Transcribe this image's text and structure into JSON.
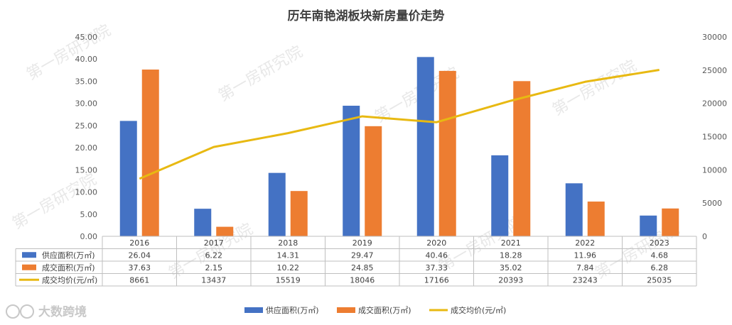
{
  "chart_data": {
    "type": "bar",
    "title": "历年南艳湖板块新房量价走势",
    "categories": [
      "2016",
      "2017",
      "2018",
      "2019",
      "2020",
      "2021",
      "2022",
      "2023"
    ],
    "series": [
      {
        "name": "供应面积(万㎡)",
        "type": "bar",
        "axis": "left",
        "color": "#4472c4",
        "values": [
          26.04,
          6.22,
          14.31,
          29.47,
          40.46,
          18.28,
          11.96,
          4.68
        ]
      },
      {
        "name": "成交面积(万㎡)",
        "type": "bar",
        "axis": "left",
        "color": "#ed7d31",
        "values": [
          37.63,
          2.15,
          10.22,
          24.85,
          37.33,
          35.02,
          7.84,
          6.28
        ]
      },
      {
        "name": "成交均价(元/㎡)",
        "type": "line",
        "axis": "right",
        "color": "#e8b912",
        "values": [
          8661,
          13437,
          15519,
          18046,
          17166,
          20393,
          23243,
          25035
        ]
      }
    ],
    "y_left": {
      "ticks": [
        "0.00",
        "5.00",
        "10.00",
        "15.00",
        "20.00",
        "25.00",
        "30.00",
        "35.00",
        "40.00",
        "45.00"
      ],
      "ylim": [
        0,
        45
      ]
    },
    "y_right": {
      "ticks": [
        "0",
        "5000",
        "10000",
        "15000",
        "20000",
        "25000",
        "30000"
      ],
      "ylim": [
        0,
        30000
      ]
    },
    "data_table": {
      "rows": [
        {
          "label": "供应面积(万㎡)",
          "values": [
            "26.04",
            "6.22",
            "14.31",
            "29.47",
            "40.46",
            "18.28",
            "11.96",
            "4.68"
          ]
        },
        {
          "label": "成交面积(万㎡)",
          "values": [
            "37.63",
            "2.15",
            "10.22",
            "24.85",
            "37.33",
            "35.02",
            "7.84",
            "6.28"
          ]
        },
        {
          "label": "成交均价(元/㎡)",
          "values": [
            "8661",
            "13437",
            "15519",
            "18046",
            "17166",
            "20393",
            "23243",
            "25035"
          ]
        }
      ]
    },
    "legend": {
      "position": "bottom",
      "entries": [
        "供应面积(万㎡)",
        "成交面积(万㎡)",
        "成交均价(元/㎡)"
      ]
    },
    "grid": false
  },
  "watermark": "第一房研究院",
  "logo_text": "大数跨境"
}
